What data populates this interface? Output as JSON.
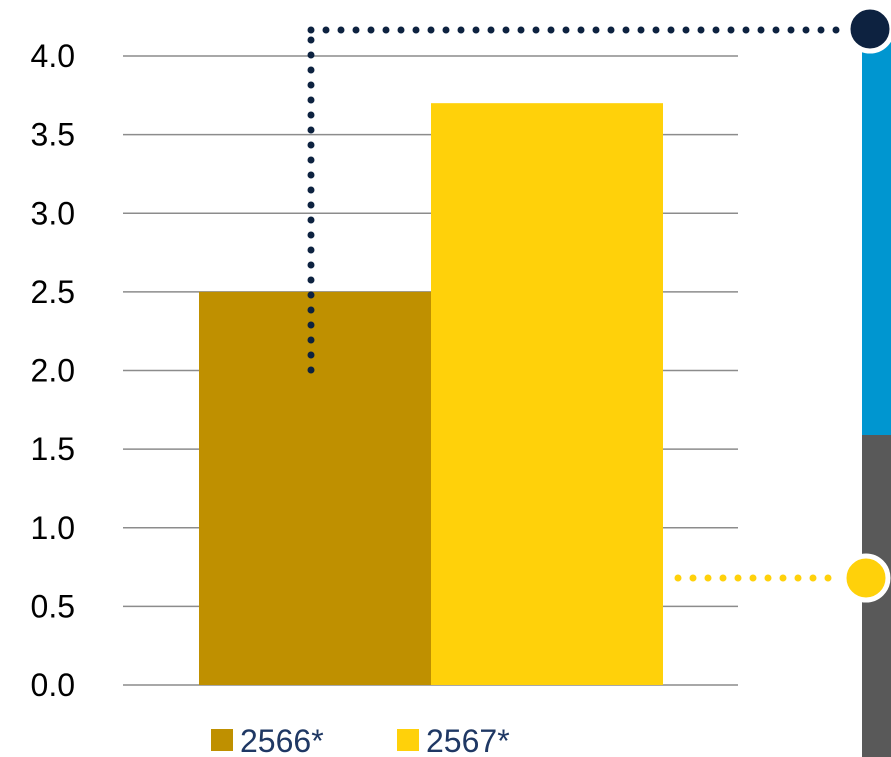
{
  "chart_data": {
    "type": "bar",
    "categories": [
      "2566*",
      "2567*"
    ],
    "values": [
      2.5,
      3.7
    ],
    "colors": [
      "#bf9000",
      "#ffd10a"
    ],
    "title": "",
    "xlabel": "",
    "ylabel": "",
    "ylim": [
      0,
      4.0
    ],
    "yticks": [
      "0.0",
      "0.5",
      "1.0",
      "1.5",
      "2.0",
      "2.5",
      "3.0",
      "3.5",
      "4.0"
    ],
    "grid": true,
    "legend": {
      "placement": "bottom",
      "entries": [
        {
          "label": "2566*",
          "color": "#bf9000"
        },
        {
          "label": "2567*",
          "color": "#ffd10a"
        }
      ]
    }
  },
  "decor": {
    "navy": "#0d2240",
    "blue_bar": "#0096d0",
    "gray_bar": "#595959",
    "yellow_dot": "#ffd10a"
  }
}
